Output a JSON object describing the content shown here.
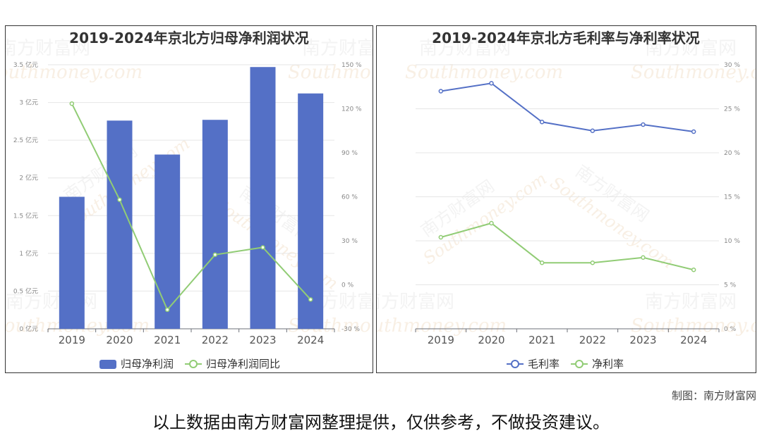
{
  "watermark": {
    "cn": "南方财富网",
    "en": "Southmoney.com"
  },
  "chart_data": [
    {
      "type": "bar",
      "title": "2019-2024年京北方归母净利润状况",
      "categories": [
        "2019",
        "2020",
        "2021",
        "2022",
        "2023",
        "2024"
      ],
      "y_left": {
        "ticks": [
          "0 亿元",
          "0.5 亿元",
          "1 亿元",
          "1.5 亿元",
          "2 亿元",
          "2.5 亿元",
          "3 亿元",
          "3.5 亿元"
        ],
        "min": 0,
        "max": 3.5
      },
      "y_right": {
        "ticks": [
          "-30 %",
          "0 %",
          "30 %",
          "60 %",
          "90 %",
          "120 %",
          "150 %"
        ],
        "min": -30,
        "max": 150
      },
      "series": [
        {
          "name": "归母净利润",
          "type": "bar",
          "axis": "left",
          "color": "#5470c6",
          "values": [
            1.75,
            2.76,
            2.31,
            2.77,
            3.47,
            3.12
          ]
        },
        {
          "name": "归母净利润同比",
          "type": "line",
          "axis": "right",
          "color": "#91cc75",
          "values": [
            123.5,
            58,
            -17,
            20.5,
            25.5,
            -10
          ]
        }
      ],
      "legend_position": "bottom-center"
    },
    {
      "type": "line",
      "title": "2019-2024年京北方毛利率与净利率状况",
      "categories": [
        "2019",
        "2020",
        "2021",
        "2022",
        "2023",
        "2024"
      ],
      "y_right": {
        "ticks": [
          "0 %",
          "5 %",
          "10 %",
          "15 %",
          "20 %",
          "25 %",
          "30 %"
        ],
        "min": 0,
        "max": 30
      },
      "series": [
        {
          "name": "毛利率",
          "color": "#5470c6",
          "values": [
            27.0,
            27.9,
            23.5,
            22.5,
            23.2,
            22.4
          ]
        },
        {
          "name": "净利率",
          "color": "#91cc75",
          "values": [
            10.4,
            12.0,
            7.5,
            7.5,
            8.1,
            6.7
          ]
        }
      ],
      "legend_position": "bottom-center"
    }
  ],
  "credit": "制图：南方财富网",
  "disclaimer": "以上数据由南方财富网整理提供，仅供参考，不做投资建议。"
}
